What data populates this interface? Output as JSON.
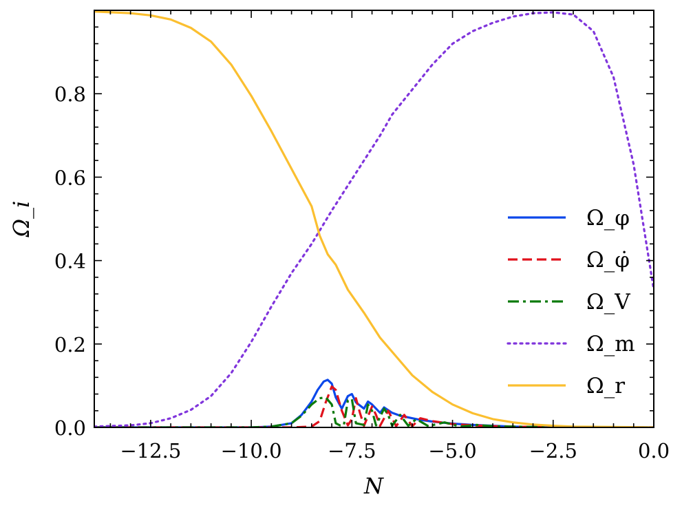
{
  "chart_data": {
    "type": "line",
    "xlabel": "N",
    "ylabel": "Ω_i",
    "xlim": [
      -13.9,
      0.0
    ],
    "ylim": [
      0.0,
      1.0
    ],
    "xticks": [
      -12.5,
      -10.0,
      -7.5,
      -5.0,
      -2.5,
      0.0
    ],
    "xtick_labels": [
      "−12.5",
      "−10.0",
      "−7.5",
      "−5.0",
      "−2.5",
      "0.0"
    ],
    "yticks": [
      0.0,
      0.2,
      0.4,
      0.6,
      0.8
    ],
    "ytick_labels": [
      "0.0",
      "0.2",
      "0.4",
      "0.6",
      "0.8"
    ],
    "grid": false,
    "legend_position": "center-right",
    "series": [
      {
        "name": "Ω_φ",
        "color": "#0c48ea",
        "style": "solid",
        "x": [
          -13.9,
          -10,
          -9.5,
          -9.0,
          -8.75,
          -8.5,
          -8.35,
          -8.2,
          -8.1,
          -8.0,
          -7.9,
          -7.75,
          -7.6,
          -7.5,
          -7.4,
          -7.2,
          -7.1,
          -7.0,
          -6.8,
          -6.7,
          -6.5,
          -6.3,
          -6.0,
          -5.8,
          -5.5,
          -5.0,
          -4.5,
          -4.0,
          -3.5,
          -3.0,
          -2.0,
          0.0
        ],
        "y": [
          0.0,
          0.0,
          0.002,
          0.01,
          0.03,
          0.062,
          0.09,
          0.11,
          0.114,
          0.105,
          0.072,
          0.045,
          0.075,
          0.08,
          0.06,
          0.045,
          0.062,
          0.055,
          0.035,
          0.048,
          0.035,
          0.028,
          0.022,
          0.018,
          0.014,
          0.009,
          0.006,
          0.004,
          0.002,
          0.001,
          0.0,
          0.0
        ]
      },
      {
        "name": "Ω_φ̇",
        "color": "#e0121c",
        "style": "dashed",
        "x": [
          -13.9,
          -9.0,
          -8.5,
          -8.3,
          -8.15,
          -8.0,
          -7.9,
          -7.75,
          -7.6,
          -7.5,
          -7.4,
          -7.3,
          -7.2,
          -7.0,
          -6.9,
          -6.8,
          -6.6,
          -6.4,
          -6.2,
          -6.0,
          -5.8,
          -5.5,
          -5.0,
          -4.5,
          -4.0,
          -3.0,
          0.0
        ],
        "y": [
          0.0,
          0.0,
          0.002,
          0.015,
          0.06,
          0.098,
          0.09,
          0.04,
          0.005,
          0.02,
          0.07,
          0.035,
          0.004,
          0.05,
          0.03,
          0.004,
          0.04,
          0.003,
          0.03,
          0.003,
          0.022,
          0.015,
          0.008,
          0.005,
          0.003,
          0.001,
          0.0
        ]
      },
      {
        "name": "Ω_V",
        "color": "#0c7a0c",
        "style": "dashdot",
        "x": [
          -13.9,
          -10,
          -9.5,
          -9.0,
          -8.75,
          -8.5,
          -8.3,
          -8.15,
          -8.0,
          -7.9,
          -7.8,
          -7.7,
          -7.6,
          -7.5,
          -7.4,
          -7.2,
          -7.1,
          -7.0,
          -6.9,
          -6.7,
          -6.6,
          -6.5,
          -6.3,
          -6.1,
          -5.9,
          -5.6,
          -5.2,
          -4.8,
          -4.4,
          -4.0,
          -3.5,
          -3.0,
          0.0
        ],
        "y": [
          0.0,
          0.0,
          0.002,
          0.01,
          0.028,
          0.055,
          0.07,
          0.072,
          0.055,
          0.01,
          0.005,
          0.005,
          0.065,
          0.068,
          0.01,
          0.006,
          0.055,
          0.04,
          0.005,
          0.045,
          0.03,
          0.004,
          0.03,
          0.004,
          0.02,
          0.003,
          0.012,
          0.002,
          0.006,
          0.003,
          0.002,
          0.001,
          0.0
        ]
      },
      {
        "name": "Ω_m",
        "color": "#8035dc",
        "style": "dotted",
        "x": [
          -13.9,
          -13.0,
          -12.5,
          -12.0,
          -11.5,
          -11.0,
          -10.5,
          -10.0,
          -9.5,
          -9.0,
          -8.5,
          -8.0,
          -7.6,
          -7.2,
          -6.8,
          -6.5,
          -6.0,
          -5.5,
          -5.0,
          -4.5,
          -4.0,
          -3.5,
          -3.0,
          -2.5,
          -2.0,
          -1.5,
          -1.0,
          -0.5,
          0.0
        ],
        "y": [
          0.002,
          0.005,
          0.01,
          0.022,
          0.042,
          0.075,
          0.13,
          0.205,
          0.29,
          0.37,
          0.44,
          0.52,
          0.58,
          0.64,
          0.7,
          0.75,
          0.81,
          0.87,
          0.92,
          0.95,
          0.97,
          0.985,
          0.993,
          0.995,
          0.99,
          0.95,
          0.84,
          0.63,
          0.33
        ]
      },
      {
        "name": "Ω_r",
        "color": "#fbbf30",
        "style": "solid",
        "x": [
          -13.9,
          -13.0,
          -12.5,
          -12.0,
          -11.5,
          -11.0,
          -10.5,
          -10.0,
          -9.5,
          -9.0,
          -8.5,
          -8.3,
          -8.1,
          -7.9,
          -7.6,
          -7.2,
          -6.8,
          -6.4,
          -6.0,
          -5.5,
          -5.0,
          -4.5,
          -4.0,
          -3.5,
          -3.0,
          -2.5,
          -2.0,
          -1.0,
          0.0
        ],
        "y": [
          0.997,
          0.993,
          0.988,
          0.978,
          0.958,
          0.925,
          0.87,
          0.795,
          0.71,
          0.62,
          0.53,
          0.46,
          0.415,
          0.39,
          0.33,
          0.275,
          0.215,
          0.17,
          0.125,
          0.085,
          0.055,
          0.034,
          0.02,
          0.012,
          0.007,
          0.004,
          0.002,
          0.001,
          0.0
        ]
      }
    ]
  }
}
